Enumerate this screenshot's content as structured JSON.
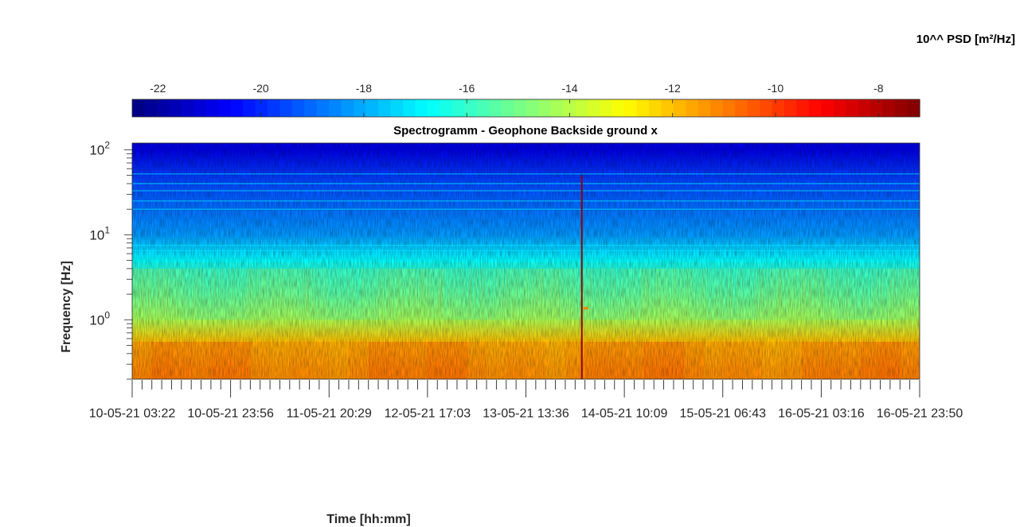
{
  "chart_data": {
    "type": "heatmap",
    "title": "Spectrogramm - Geophone Backside ground x",
    "xlabel": "Time [hh:mm]",
    "ylabel": "Frequency [Hz]",
    "y_scale": "log",
    "ylim": [
      0.2,
      120
    ],
    "y_ticks": [
      {
        "value": 1,
        "label": "10^0"
      },
      {
        "value": 10,
        "label": "10^1"
      },
      {
        "value": 100,
        "label": "10^2"
      }
    ],
    "x_start": "10-05-21 00:00",
    "x_end": "16-05-21 23:50",
    "x_tick_labels": [
      "10-05-21",
      "03:22",
      "10-05-21",
      "23:56",
      "11-05-21",
      "20:29",
      "12-05-21",
      "17:03",
      "13-05-21",
      "13:36",
      "14-05-21",
      "10:09",
      "15-05-21",
      "06:43",
      "16-05-21",
      "03:16",
      "16-05-21",
      "23:50"
    ],
    "grid": false,
    "colormap": "jet",
    "colorbar": {
      "label": "10^^ PSD [m²/Hz]",
      "range": [
        -22.5,
        -7.2
      ],
      "ticks": [
        -22,
        -20,
        -18,
        -16,
        -14,
        -12,
        -10,
        -8
      ],
      "tick_labels": [
        "-22",
        "-20",
        "-18",
        "-16",
        "-14",
        "-12",
        "-10",
        "-8"
      ],
      "placement": "top"
    },
    "psd_profile_log10": [
      {
        "frequency_hz": 100,
        "psd": -21.0
      },
      {
        "frequency_hz": 40,
        "psd": -19.5
      },
      {
        "frequency_hz": 10,
        "psd": -18.3
      },
      {
        "frequency_hz": 5,
        "psd": -16.8
      },
      {
        "frequency_hz": 2,
        "psd": -15.5
      },
      {
        "frequency_hz": 1,
        "psd": -14.2
      },
      {
        "frequency_hz": 0.55,
        "psd": -12.0
      },
      {
        "frequency_hz": 0.25,
        "psd": -11.2
      }
    ],
    "notable_events": [
      {
        "time": "13-05-21 23:50",
        "description": "broadband vertical line"
      },
      {
        "time": "14-05-21 00:30",
        "frequency_hz": 1.35,
        "description": "short orange spot"
      }
    ]
  }
}
